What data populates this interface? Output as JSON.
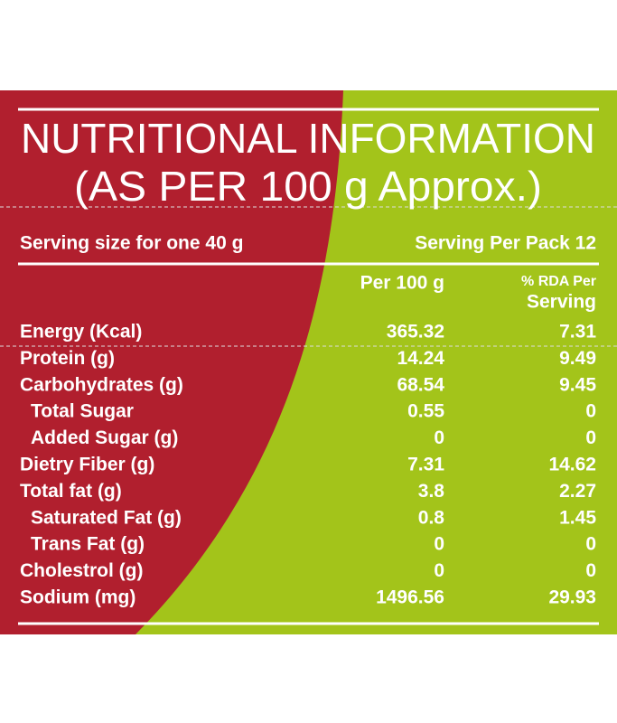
{
  "title_line_1": "NUTRITIONAL INFORMATION",
  "title_line_2": "(AS PER 100 g Approx.)",
  "serving_size": "Serving size for one 40 g",
  "serving_per_pack": "Serving Per Pack 12",
  "columns": {
    "per_100g": "Per 100 g",
    "rda_line_1": "% RDA Per",
    "rda_line_2": "Serving"
  },
  "rows": [
    {
      "name": "Energy (Kcal)",
      "per_100g": "365.32",
      "rda": "7.31"
    },
    {
      "name": "Protein (g)",
      "per_100g": "14.24",
      "rda": "9.49"
    },
    {
      "name": "Carbohydrates (g)",
      "per_100g": "68.54",
      "rda": "9.45"
    },
    {
      "name": "Total Sugar",
      "per_100g": "0.55",
      "rda": "0"
    },
    {
      "name": "Added Sugar (g)",
      "per_100g": "0",
      "rda": "0"
    },
    {
      "name": "Dietry Fiber (g)",
      "per_100g": "7.31",
      "rda": "14.62"
    },
    {
      "name": "Total fat (g)",
      "per_100g": "3.8",
      "rda": "2.27"
    },
    {
      "name": "Saturated Fat (g)",
      "per_100g": "0.8",
      "rda": "1.45"
    },
    {
      "name": "Trans Fat (g)",
      "per_100g": "0",
      "rda": "0"
    },
    {
      "name": "Cholestrol (g)",
      "per_100g": "0",
      "rda": "0"
    },
    {
      "name": "Sodium (mg)",
      "per_100g": "1496.56",
      "rda": "29.93"
    }
  ]
}
